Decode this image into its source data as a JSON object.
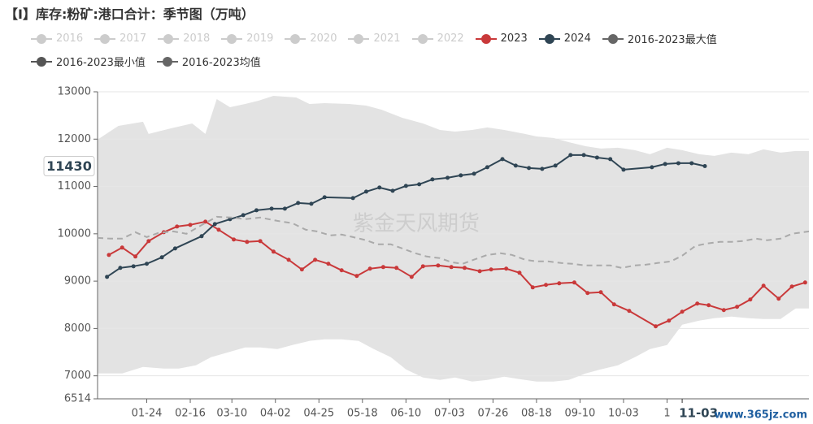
{
  "chart_data": {
    "type": "seasonal-line",
    "title": "【I】库存:粉矿:港口合计：季节图（万吨）",
    "watermark": "紫金天风期货",
    "corner_watermark": "www.365jz.com",
    "y_pointer_label": "11430",
    "x_pointer": {
      "value": 307,
      "label": "11-03"
    },
    "xlim": [
      -2,
      374
    ],
    "xticks": [
      {
        "value": 24,
        "label": "01-24"
      },
      {
        "value": 47,
        "label": "02-16"
      },
      {
        "value": 69,
        "label": "03-10"
      },
      {
        "value": 92,
        "label": "04-02"
      },
      {
        "value": 115,
        "label": "04-25"
      },
      {
        "value": 138,
        "label": "05-18"
      },
      {
        "value": 161,
        "label": "06-10"
      },
      {
        "value": 184,
        "label": "07-03"
      },
      {
        "value": 207,
        "label": "07-26"
      },
      {
        "value": 230,
        "label": "08-18"
      },
      {
        "value": 253,
        "label": "09-10"
      },
      {
        "value": 276,
        "label": "10-03"
      },
      {
        "value": 299,
        "label": "1"
      }
    ],
    "ylim": [
      6514,
      13000
    ],
    "yticks": [
      6514,
      7000,
      8000,
      9000,
      10000,
      11000,
      12000,
      13000
    ],
    "grid": true,
    "series": [
      {
        "name": "2016",
        "color": "#cccccc",
        "hidden": true
      },
      {
        "name": "2017",
        "color": "#cccccc",
        "hidden": true
      },
      {
        "name": "2018",
        "color": "#cccccc",
        "hidden": true
      },
      {
        "name": "2019",
        "color": "#cccccc",
        "hidden": true
      },
      {
        "name": "2020",
        "color": "#cccccc",
        "hidden": true
      },
      {
        "name": "2021",
        "color": "#cccccc",
        "hidden": true
      },
      {
        "name": "2022",
        "color": "#cccccc",
        "hidden": true
      },
      {
        "name": "2023",
        "color": "#c9393a",
        "style": "line",
        "x": [
          4,
          11,
          18,
          25,
          33,
          40,
          47,
          55,
          62,
          70,
          77,
          84,
          91,
          99,
          106,
          113,
          120,
          127,
          135,
          142,
          149,
          156,
          164,
          170,
          178,
          185,
          192,
          200,
          206,
          214,
          221,
          228,
          235,
          242,
          250,
          257,
          264,
          271,
          279,
          293,
          300,
          307,
          315,
          321,
          329,
          336,
          343,
          350,
          358,
          365,
          372
        ],
        "values": [
          9554,
          9709,
          9520,
          9846,
          10034,
          10154,
          10189,
          10257,
          10086,
          9880,
          9829,
          9846,
          9623,
          9451,
          9246,
          9451,
          9366,
          9229,
          9109,
          9263,
          9297,
          9280,
          9091,
          9314,
          9331,
          9297,
          9280,
          9211,
          9246,
          9263,
          9177,
          8868,
          8920,
          8954,
          8971,
          8749,
          8766,
          8509,
          8371,
          8046,
          8166,
          8354,
          8526,
          8491,
          8389,
          8457,
          8611,
          8903,
          8629,
          8886,
          8971
        ]
      },
      {
        "name": "2024",
        "color": "#2f4554",
        "style": "line",
        "x": [
          3,
          10,
          17,
          24,
          32,
          39,
          53,
          60,
          68,
          75,
          82,
          90,
          97,
          104,
          111,
          118,
          133,
          140,
          147,
          154,
          161,
          168,
          175,
          183,
          190,
          197,
          204,
          212,
          219,
          226,
          233,
          240,
          248,
          255,
          262,
          269,
          276,
          291,
          298,
          305,
          312,
          319
        ],
        "values": [
          9091,
          9280,
          9314,
          9366,
          9503,
          9691,
          9949,
          10206,
          10308,
          10394,
          10497,
          10531,
          10531,
          10651,
          10634,
          10771,
          10754,
          10891,
          10977,
          10909,
          11011,
          11046,
          11149,
          11183,
          11234,
          11269,
          11406,
          11577,
          11440,
          11389,
          11371,
          11440,
          11663,
          11663,
          11611,
          11577,
          11354,
          11406,
          11474,
          11491,
          11491,
          11430
        ]
      },
      {
        "name": "2016-2023最大值",
        "color": "#666666",
        "style": "band-top",
        "fill": "#e3e3e3",
        "x": [
          -2,
          9,
          22,
          25,
          37,
          48,
          55,
          61,
          68,
          76,
          83,
          91,
          103,
          110,
          118,
          131,
          140,
          148,
          159,
          170,
          179,
          187,
          196,
          204,
          213,
          224,
          230,
          239,
          247,
          256,
          264,
          273,
          282,
          290,
          299,
          307,
          316,
          324,
          333,
          342,
          350,
          359,
          367,
          374
        ],
        "values": [
          11989,
          12280,
          12366,
          12109,
          12229,
          12331,
          12109,
          12846,
          12674,
          12743,
          12811,
          12914,
          12880,
          12743,
          12760,
          12743,
          12709,
          12623,
          12451,
          12331,
          12194,
          12160,
          12194,
          12246,
          12194,
          12109,
          12057,
          12023,
          11937,
          11851,
          11800,
          11817,
          11766,
          11680,
          11817,
          11766,
          11680,
          11646,
          11714,
          11680,
          11783,
          11714,
          11749,
          11749
        ]
      },
      {
        "name": "2016-2023最小值",
        "color": "#555555",
        "style": "band-bottom",
        "fill": "#ffffff",
        "x": [
          -2,
          11,
          22,
          33,
          41,
          50,
          58,
          67,
          76,
          84,
          93,
          101,
          110,
          118,
          127,
          136,
          144,
          153,
          161,
          170,
          179,
          187,
          196,
          204,
          213,
          221,
          230,
          239,
          247,
          256,
          264,
          273,
          282,
          290,
          299,
          307,
          316,
          324,
          333,
          342,
          350,
          359,
          367,
          374
        ],
        "values": [
          7051,
          7051,
          7189,
          7154,
          7154,
          7223,
          7394,
          7497,
          7600,
          7600,
          7566,
          7651,
          7737,
          7771,
          7771,
          7737,
          7566,
          7394,
          7137,
          6966,
          6914,
          6966,
          6880,
          6914,
          6983,
          6931,
          6880,
          6880,
          6914,
          7051,
          7137,
          7223,
          7394,
          7566,
          7651,
          8080,
          8166,
          8217,
          8251,
          8217,
          8200,
          8200,
          8423,
          8423
        ]
      },
      {
        "name": "2016-2023均值",
        "color": "#666666",
        "style": "dashed",
        "line_color": "#aaaaaa",
        "x": [
          -2,
          5,
          11,
          18,
          24,
          30,
          38,
          45,
          54,
          61,
          69,
          76,
          84,
          93,
          101,
          108,
          114,
          121,
          127,
          133,
          140,
          146,
          153,
          159,
          166,
          172,
          179,
          185,
          191,
          198,
          204,
          211,
          217,
          224,
          230,
          236,
          243,
          249,
          256,
          262,
          269,
          275,
          282,
          288,
          294,
          301,
          307,
          314,
          320,
          327,
          333,
          339,
          346,
          352,
          359,
          365,
          374
        ],
        "values": [
          9914,
          9897,
          9897,
          10034,
          9931,
          10017,
          10051,
          10000,
          10206,
          10360,
          10343,
          10309,
          10343,
          10274,
          10223,
          10086,
          10051,
          9966,
          9983,
          9931,
          9863,
          9777,
          9777,
          9691,
          9589,
          9520,
          9486,
          9400,
          9366,
          9469,
          9554,
          9589,
          9554,
          9451,
          9417,
          9417,
          9383,
          9366,
          9331,
          9331,
          9331,
          9280,
          9331,
          9349,
          9383,
          9417,
          9537,
          9743,
          9794,
          9829,
          9829,
          9846,
          9897,
          9863,
          9897,
          10000,
          10051
        ]
      }
    ]
  }
}
